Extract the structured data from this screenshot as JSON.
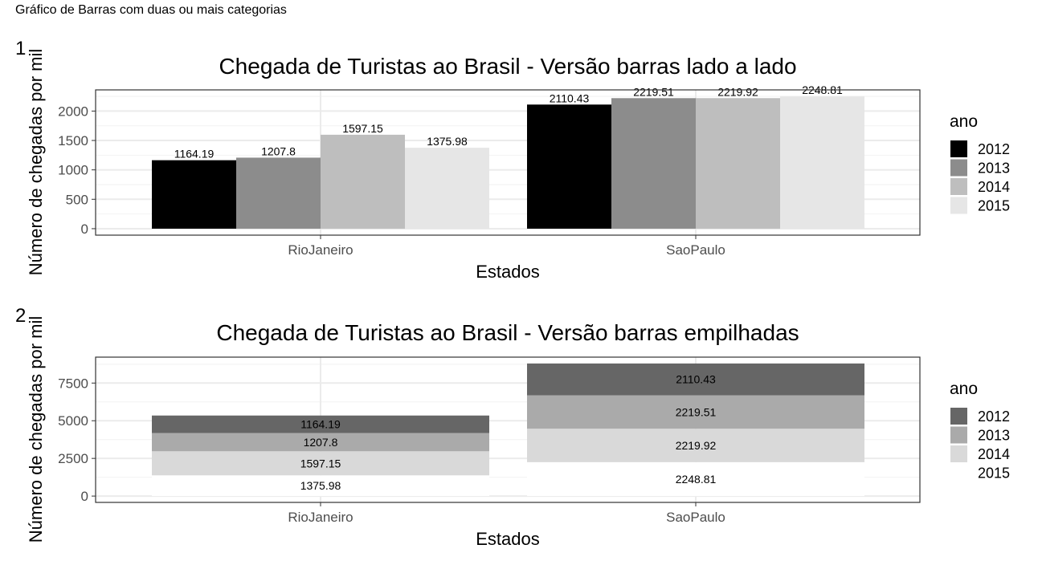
{
  "page_title": "Gráfico de Barras com duas ou mais categorias",
  "colors": {
    "panel_border": "#333333",
    "grid_major": "#ebebeb",
    "grid_minor": "#f2f2f2",
    "axis_text": "#4d4d4d",
    "dodge": {
      "2012": "#000000",
      "2013": "#8c8c8c",
      "2014": "#bebebe",
      "2015": "#e6e6e6"
    },
    "stack": {
      "2012": "#666666",
      "2013": "#aaaaaa",
      "2014": "#d9d9d9",
      "2015": "#ffffff"
    }
  },
  "chart_data": [
    {
      "tag": "1",
      "type": "bar",
      "position": "dodge",
      "title": "Chegada de Turistas ao Brasil - Versão barras lado a lado",
      "xlabel": "Estados",
      "ylabel": "Número de chegadas por mil",
      "categories": [
        "RioJaneiro",
        "SaoPaulo"
      ],
      "series": [
        {
          "name": "2012",
          "values": [
            1164.19,
            2110.43
          ]
        },
        {
          "name": "2013",
          "values": [
            1207.8,
            2219.51
          ]
        },
        {
          "name": "2014",
          "values": [
            1597.15,
            2219.92
          ]
        },
        {
          "name": "2015",
          "values": [
            1375.98,
            2248.81
          ]
        }
      ],
      "data_labels": [
        [
          "1164.19",
          "2110.43"
        ],
        [
          "1207.8",
          "2219.51"
        ],
        [
          "1597.15",
          "2219.92"
        ],
        [
          "1375.98",
          "2248.81"
        ]
      ],
      "ylim": [
        -110,
        2360
      ],
      "yticks": [
        0,
        500,
        1000,
        1500,
        2000
      ],
      "ytick_labels": [
        "0",
        "500",
        "1000",
        "1500",
        "2000"
      ],
      "grid": true,
      "legend": {
        "title": "ano",
        "position": "right",
        "entries": [
          "2012",
          "2013",
          "2014",
          "2015"
        ]
      }
    },
    {
      "tag": "2",
      "type": "bar",
      "position": "stack",
      "title": "Chegada de Turistas ao Brasil - Versão barras empilhadas",
      "xlabel": "Estados",
      "ylabel": "Número de chegadas por mil",
      "categories": [
        "RioJaneiro",
        "SaoPaulo"
      ],
      "series": [
        {
          "name": "2012",
          "values": [
            1164.19,
            2110.43
          ]
        },
        {
          "name": "2013",
          "values": [
            1207.8,
            2219.51
          ]
        },
        {
          "name": "2014",
          "values": [
            1597.15,
            2219.92
          ]
        },
        {
          "name": "2015",
          "values": [
            1375.98,
            2248.81
          ]
        }
      ],
      "data_labels": [
        [
          "1164.19",
          "2110.43"
        ],
        [
          "1207.8",
          "2219.51"
        ],
        [
          "1597.15",
          "2219.92"
        ],
        [
          "1375.98",
          "2248.81"
        ]
      ],
      "ylim": [
        -420,
        9220
      ],
      "yticks": [
        0,
        2500,
        5000,
        7500
      ],
      "ytick_labels": [
        "0",
        "2500",
        "5000",
        "7500"
      ],
      "grid": true,
      "legend": {
        "title": "ano",
        "position": "right",
        "entries": [
          "2012",
          "2013",
          "2014",
          "2015"
        ]
      }
    }
  ]
}
